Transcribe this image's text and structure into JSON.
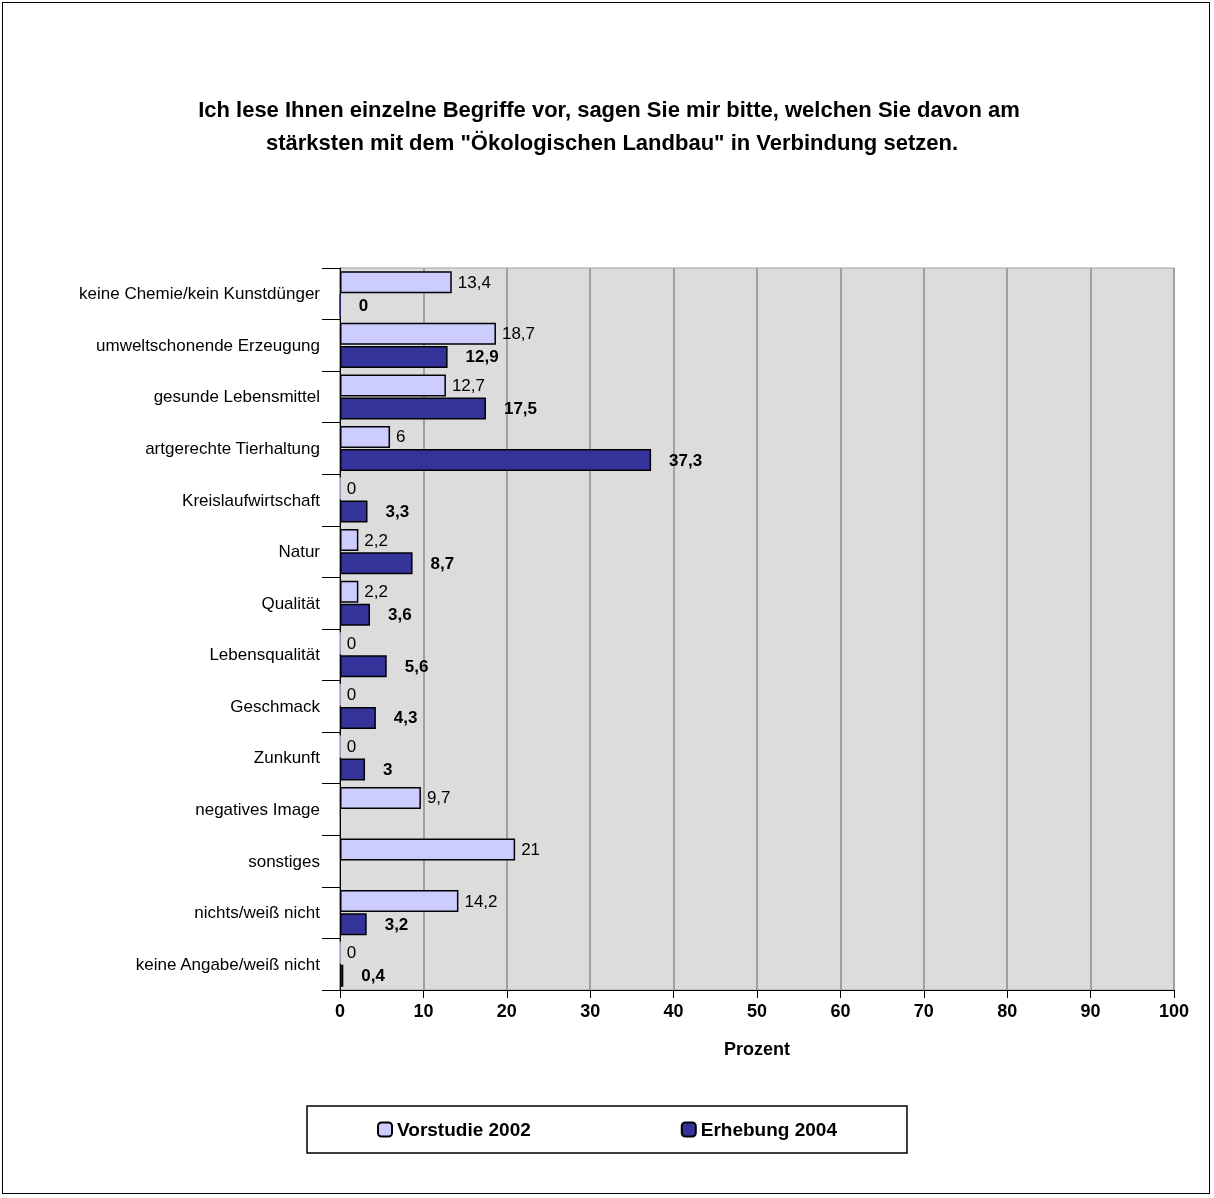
{
  "chart_data": {
    "type": "bar",
    "orientation": "horizontal",
    "title": "Ich lese Ihnen einzelne Begriffe vor, sagen Sie mir bitte, welchen Sie davon am stärksten mit dem \"Ökologischen Landbau\" in Verbindung setzen.",
    "xlabel": "Prozent",
    "categories": [
      "keine Chemie/kein Kunstdünger",
      "umweltschonende Erzeugung",
      "gesunde Lebensmittel",
      "artgerechte Tierhaltung",
      "Kreislaufwirtschaft",
      "Natur",
      "Qualität",
      "Lebensqualität",
      "Geschmack",
      "Zunkunft",
      "negatives Image",
      "sonstiges",
      "nichts/weiß nicht",
      "keine Angabe/weiß nicht"
    ],
    "series": [
      {
        "name": "Vorstudie 2002",
        "color": "#ccccff",
        "values": [
          13.4,
          18.7,
          12.7,
          6,
          0,
          2.2,
          2.2,
          0,
          0,
          0,
          9.7,
          21,
          14.2,
          0
        ],
        "value_labels": [
          "13,4",
          "18,7",
          "12,7",
          "6",
          "0",
          "2,2",
          "2,2",
          "0",
          "0",
          "0",
          "9,7",
          "21",
          "14,2",
          "0"
        ]
      },
      {
        "name": "Erhebung 2004",
        "color": "#333399",
        "values": [
          0,
          12.9,
          17.5,
          37.3,
          3.3,
          8.7,
          3.6,
          5.6,
          4.3,
          3,
          null,
          null,
          3.2,
          0.4
        ],
        "value_labels": [
          "0",
          "12,9",
          "17,5",
          "37,3",
          "3,3",
          "8,7",
          "3,6",
          "5,6",
          "4,3",
          "3",
          null,
          null,
          "3,2",
          "0,4"
        ]
      }
    ],
    "xlim": [
      0,
      100
    ],
    "xticks": [
      0,
      10,
      20,
      30,
      40,
      50,
      60,
      70,
      80,
      90,
      100
    ],
    "grid": "x",
    "legend": "bottom"
  }
}
